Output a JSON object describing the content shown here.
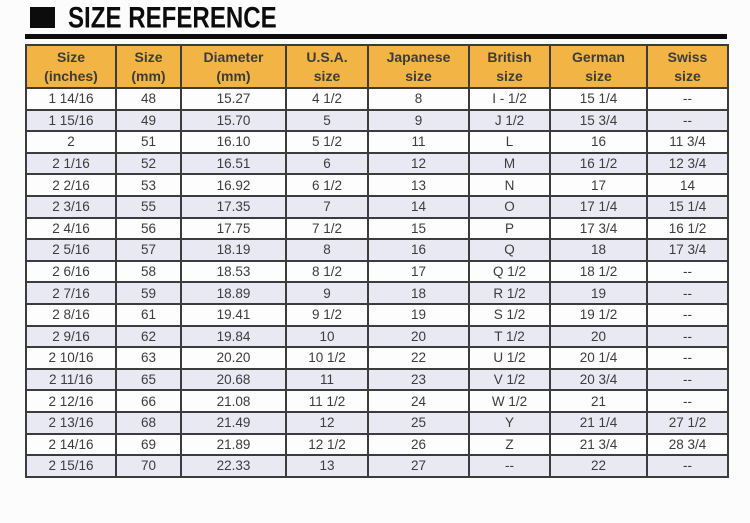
{
  "page": {
    "title": "SIZE REFERENCE"
  },
  "colors": {
    "header_bg": "#F2B445",
    "row_alt_bg": "#E9E9F3",
    "row_bg": "#FDFDFE",
    "grid_border": "#3C3C3C",
    "text": "#3C3C3C",
    "title": "#0C0C0C"
  },
  "table": {
    "columns": [
      {
        "key": "size-inches",
        "line1": "Size",
        "line2": "(inches)"
      },
      {
        "key": "size-mm",
        "line1": "Size",
        "line2": "(mm)"
      },
      {
        "key": "diameter-mm",
        "line1": "Diameter",
        "line2": "(mm)"
      },
      {
        "key": "usa-size",
        "line1": "U.S.A.",
        "line2": "size"
      },
      {
        "key": "japanese-size",
        "line1": "Japanese",
        "line2": "size"
      },
      {
        "key": "british-size",
        "line1": "British",
        "line2": "size"
      },
      {
        "key": "german-size",
        "line1": "German",
        "line2": "size"
      },
      {
        "key": "swiss-size",
        "line1": "Swiss",
        "line2": "size"
      }
    ],
    "rows": [
      [
        "1 14/16",
        "48",
        "15.27",
        "4 1/2",
        "8",
        "I - 1/2",
        "15 1/4",
        "--"
      ],
      [
        "1 15/16",
        "49",
        "15.70",
        "5",
        "9",
        "J 1/2",
        "15 3/4",
        "--"
      ],
      [
        "2",
        "51",
        "16.10",
        "5 1/2",
        "11",
        "L",
        "16",
        "11 3/4"
      ],
      [
        "2 1/16",
        "52",
        "16.51",
        "6",
        "12",
        "M",
        "16 1/2",
        "12 3/4"
      ],
      [
        "2 2/16",
        "53",
        "16.92",
        "6 1/2",
        "13",
        "N",
        "17",
        "14"
      ],
      [
        "2 3/16",
        "55",
        "17.35",
        "7",
        "14",
        "O",
        "17 1/4",
        "15 1/4"
      ],
      [
        "2 4/16",
        "56",
        "17.75",
        "7 1/2",
        "15",
        "P",
        "17 3/4",
        "16 1/2"
      ],
      [
        "2 5/16",
        "57",
        "18.19",
        "8",
        "16",
        "Q",
        "18",
        "17 3/4"
      ],
      [
        "2 6/16",
        "58",
        "18.53",
        "8 1/2",
        "17",
        "Q 1/2",
        "18 1/2",
        "--"
      ],
      [
        "2 7/16",
        "59",
        "18.89",
        "9",
        "18",
        "R 1/2",
        "19",
        "--"
      ],
      [
        "2 8/16",
        "61",
        "19.41",
        "9 1/2",
        "19",
        "S 1/2",
        "19 1/2",
        "--"
      ],
      [
        "2 9/16",
        "62",
        "19.84",
        "10",
        "20",
        "T 1/2",
        "20",
        "--"
      ],
      [
        "2 10/16",
        "63",
        "20.20",
        "10 1/2",
        "22",
        "U 1/2",
        "20 1/4",
        "--"
      ],
      [
        "2 11/16",
        "65",
        "20.68",
        "11",
        "23",
        "V 1/2",
        "20 3/4",
        "--"
      ],
      [
        "2 12/16",
        "66",
        "21.08",
        "11 1/2",
        "24",
        "W 1/2",
        "21",
        "--"
      ],
      [
        "2 13/16",
        "68",
        "21.49",
        "12",
        "25",
        "Y",
        "21 1/4",
        "27 1/2"
      ],
      [
        "2 14/16",
        "69",
        "21.89",
        "12 1/2",
        "26",
        "Z",
        "21 3/4",
        "28 3/4"
      ],
      [
        "2 15/16",
        "70",
        "22.33",
        "13",
        "27",
        "--",
        "22",
        "--"
      ]
    ]
  }
}
